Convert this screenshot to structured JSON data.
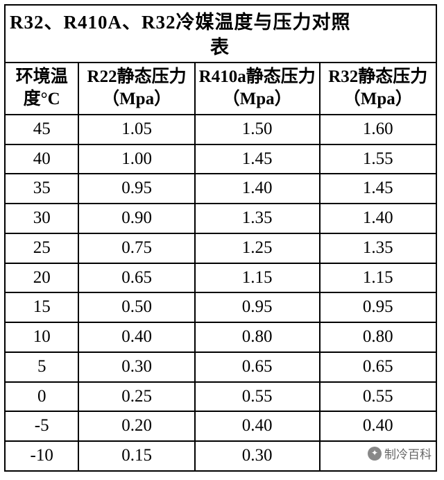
{
  "table": {
    "title_line1": "R32、R410A、R32冷媒温度与压力对照",
    "title_line2": "表",
    "columns": [
      "环境温度°C",
      "R22静态压力（Mpa）",
      "R410a静态压力（Mpa）",
      "R32静态压力（Mpa）"
    ],
    "col_widths_pct": [
      17,
      27,
      29,
      27
    ],
    "rows": [
      [
        "45",
        "1.05",
        "1.50",
        "1.60"
      ],
      [
        "40",
        "1.00",
        "1.45",
        "1.55"
      ],
      [
        "35",
        "0.95",
        "1.40",
        "1.45"
      ],
      [
        "30",
        "0.90",
        "1.35",
        "1.40"
      ],
      [
        "25",
        "0.75",
        "1.25",
        "1.35"
      ],
      [
        "20",
        "0.65",
        "1.15",
        "1.15"
      ],
      [
        "15",
        "0.50",
        "0.95",
        "0.95"
      ],
      [
        "10",
        "0.40",
        "0.80",
        "0.80"
      ],
      [
        "5",
        "0.30",
        "0.65",
        "0.65"
      ],
      [
        "0",
        "0.25",
        "0.55",
        "0.55"
      ],
      [
        "-5",
        "0.20",
        "0.40",
        "0.40"
      ],
      [
        "-10",
        "0.15",
        "0.30",
        ""
      ]
    ],
    "border_color": "#000000",
    "background_color": "#ffffff",
    "text_color": "#000000",
    "title_fontsize": 27,
    "header_fontsize": 25,
    "cell_fontsize": 25
  },
  "watermark": {
    "text": "制冷百科",
    "icon_glyph": "✦",
    "color": "#666666"
  }
}
